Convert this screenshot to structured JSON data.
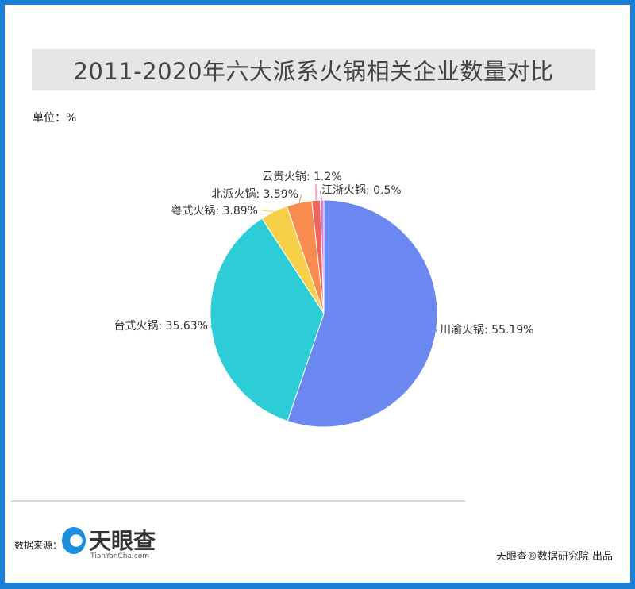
{
  "chart_data": {
    "type": "pie",
    "title": "2011-2020年六大派系火锅相关企业数量对比",
    "unit_label": "单位：%",
    "start_angle": "12 o'clock, clockwise",
    "slices": [
      {
        "name": "川渝火锅",
        "value": 55.19,
        "label": "川渝火锅: 55.19%",
        "color": "#6b87f0"
      },
      {
        "name": "台式火锅",
        "value": 35.63,
        "label": "台式火锅: 35.63%",
        "color": "#2ccdd6"
      },
      {
        "name": "粤式火锅",
        "value": 3.89,
        "label": "粤式火锅: 3.89%",
        "color": "#f7d04a"
      },
      {
        "name": "北派火锅",
        "value": 3.59,
        "label": "北派火锅: 3.59%",
        "color": "#f88c4e"
      },
      {
        "name": "云贵火锅",
        "value": 1.2,
        "label": "云贵火锅: 1.2%",
        "color": "#ef6461"
      },
      {
        "name": "江浙火锅",
        "value": 0.5,
        "label": "江浙火锅: 0.5%",
        "color": "#e07bc9"
      }
    ]
  },
  "footer": {
    "source_label": "数据来源：",
    "logo_text": "天眼查",
    "logo_sub": "TianYanCha.com",
    "credit": "天眼查®数据研究院 出品"
  }
}
